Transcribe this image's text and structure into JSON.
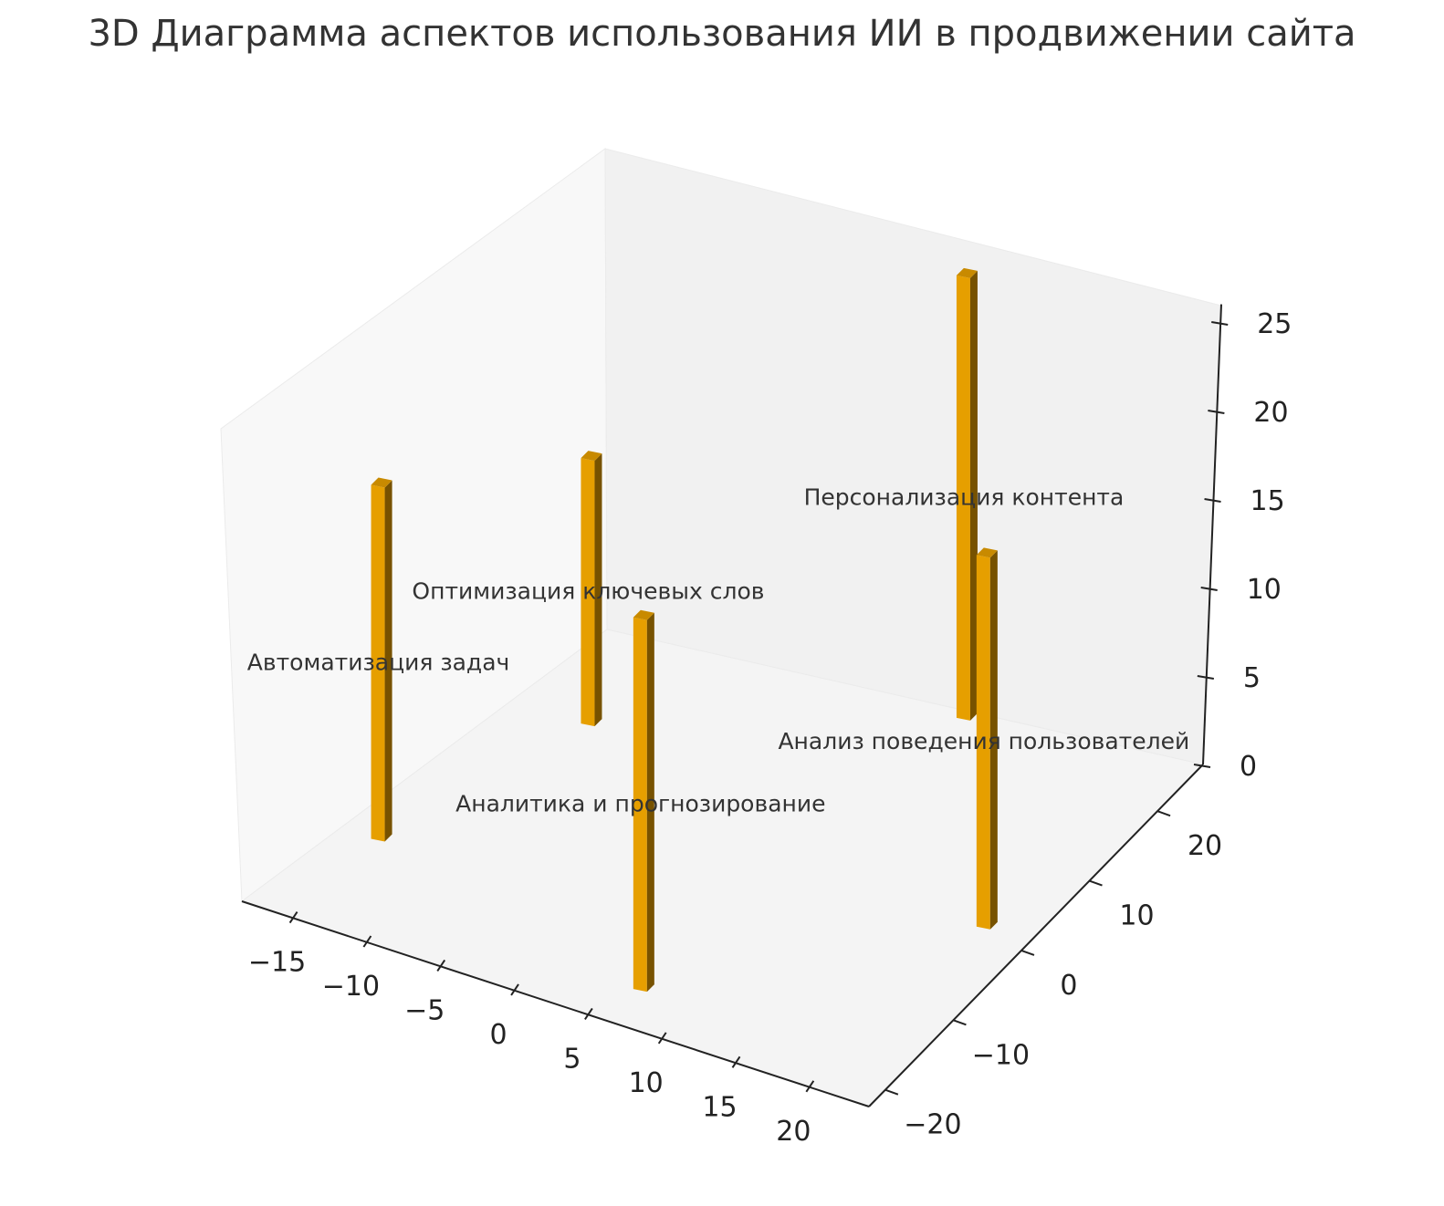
{
  "chart_data": {
    "type": "bar3d",
    "title": "3D Диаграмма аспектов использования ИИ в продвижении сайта",
    "xlim": [
      -18.5,
      24
    ],
    "ylim": [
      -22.4,
      26.7
    ],
    "zlim": [
      0,
      26
    ],
    "x_ticks": [
      -15,
      -10,
      -5,
      0,
      5,
      10,
      15,
      20
    ],
    "y_ticks": [
      -20,
      -10,
      0,
      10,
      20
    ],
    "z_ticks": [
      0,
      5,
      10,
      15,
      20,
      25
    ],
    "bar_color": "#E69F00",
    "grid": false,
    "bars": [
      {
        "label": "Автоматизация задач",
        "x": -15,
        "y": -11,
        "z": 20
      },
      {
        "label": "Оптимизация ключевых слов",
        "x": -10,
        "y": 9,
        "z": 15
      },
      {
        "label": "Аналитика и прогнозирование",
        "x": 6,
        "y": -18,
        "z": 21
      },
      {
        "label": "Персонализация контента",
        "x": 9,
        "y": 23,
        "z": 25
      },
      {
        "label": "Анализ поведения пользователей",
        "x": 20.5,
        "y": 1,
        "z": 21
      }
    ]
  }
}
